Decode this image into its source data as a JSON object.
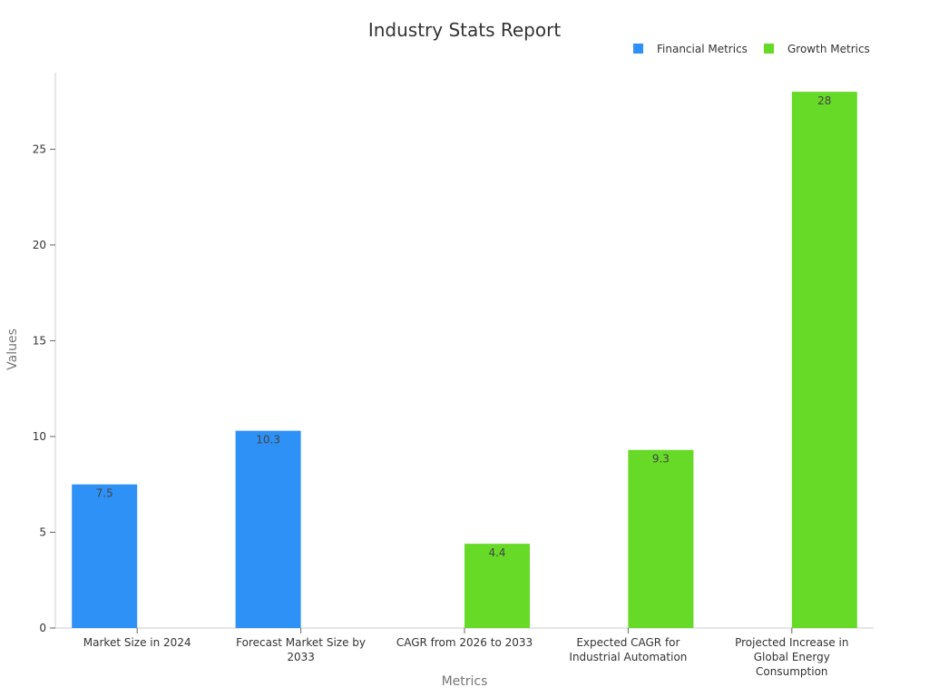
{
  "chart_data": {
    "type": "bar",
    "title": "Industry Stats Report",
    "xlabel": "Metrics",
    "ylabel": "Values",
    "ylim": [
      0,
      29
    ],
    "yticks": [
      0,
      5,
      10,
      15,
      20,
      25
    ],
    "grid": false,
    "legend_position": "top-right",
    "categories": [
      "Market Size in 2024",
      "Forecast Market Size by 2033",
      "CAGR from 2026 to 2033",
      "Expected CAGR for Industrial Automation",
      "Projected Increase in Global Energy Consumption"
    ],
    "series": [
      {
        "name": "Financial Metrics",
        "color": "#2e91f5",
        "values": [
          7.5,
          10.3,
          null,
          null,
          null
        ]
      },
      {
        "name": "Growth Metrics",
        "color": "#66da26",
        "values": [
          null,
          null,
          4.4,
          9.3,
          28
        ]
      }
    ]
  }
}
